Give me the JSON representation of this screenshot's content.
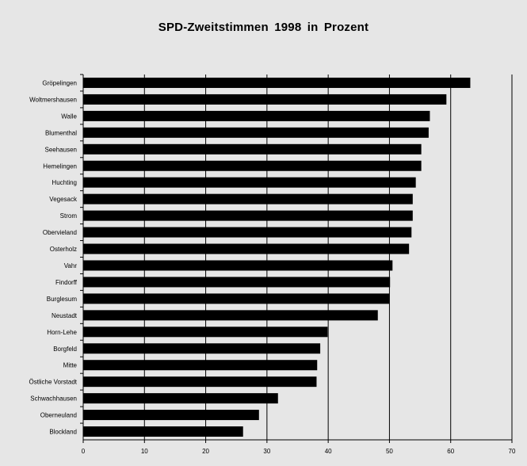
{
  "chart_data": {
    "type": "bar",
    "orientation": "horizontal",
    "title": "SPD-Zweitstimmen 1998 in Prozent",
    "xlabel": "",
    "ylabel": "",
    "xlim": [
      0,
      70
    ],
    "x_ticks": [
      0,
      10,
      20,
      30,
      40,
      50,
      60,
      70
    ],
    "grid": "vertical",
    "bar_color": "#000000",
    "background_color": "#e6e6e6",
    "categories": [
      "Gröpelingen",
      "Woltmershausen",
      "Walle",
      "Blumenthal",
      "Seehausen",
      "Hemelingen",
      "Huchting",
      "Vegesack",
      "Strom",
      "Obervieland",
      "Osterholz",
      "Vahr",
      "Findorff",
      "Burglesum",
      "Neustadt",
      "Horn-Lehe",
      "Borgfeld",
      "Mitte",
      "Östliche Vorstadt",
      "Schwachhausen",
      "Oberneuland",
      "Blockland"
    ],
    "values": [
      63.2,
      59.3,
      56.6,
      56.4,
      55.2,
      55.2,
      54.3,
      53.8,
      53.8,
      53.6,
      53.2,
      50.5,
      50.1,
      50.0,
      48.1,
      39.9,
      38.7,
      38.2,
      38.1,
      31.8,
      28.7,
      26.1
    ]
  }
}
